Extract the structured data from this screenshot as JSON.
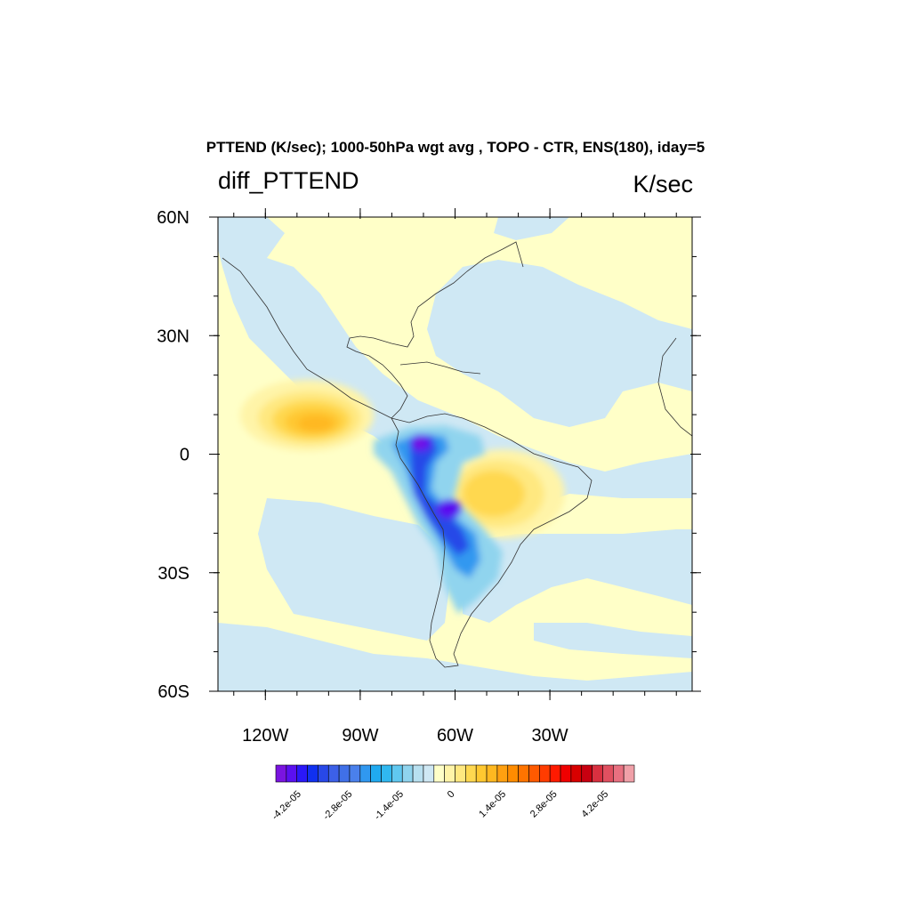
{
  "title": "PTTEND (K/sec); 1000-50hPa wgt avg , TOPO - CTR, ENS(180), iday=5",
  "left_string": "diff_PTTEND",
  "right_string": "K/sec",
  "map": {
    "lon_range": [
      -135,
      15
    ],
    "lat_range": [
      -60,
      60
    ],
    "lat_ticks": [
      {
        "value": 60,
        "label": "60N"
      },
      {
        "value": 30,
        "label": "30N"
      },
      {
        "value": 0,
        "label": "0"
      },
      {
        "value": -30,
        "label": "30S"
      },
      {
        "value": -60,
        "label": "60S"
      }
    ],
    "lon_ticks": [
      {
        "value": -120,
        "label": "120W"
      },
      {
        "value": -90,
        "label": "90W"
      },
      {
        "value": -60,
        "label": "60W"
      },
      {
        "value": -30,
        "label": "30W"
      }
    ]
  },
  "colorbar": {
    "labels": [
      "-4.2e-05",
      "-2.8e-05",
      "-1.4e-05",
      "0",
      "1.4e-05",
      "2.8e-05",
      "4.2e-05"
    ],
    "colors": [
      "#7a14e0",
      "#5a10f0",
      "#2a18f8",
      "#1030f0",
      "#2848e8",
      "#3c60e8",
      "#4070e8",
      "#4a80ec",
      "#3098f0",
      "#20aaf0",
      "#30b8f0",
      "#60c8f0",
      "#90d4ee",
      "#b8e0f0",
      "#cfe8f4",
      "#ffffc8",
      "#fff4a8",
      "#ffe880",
      "#ffd850",
      "#ffc830",
      "#ffb820",
      "#ffa010",
      "#ff8c00",
      "#ff7400",
      "#ff5a00",
      "#ff3c00",
      "#ff1a00",
      "#f00000",
      "#d80000",
      "#c80010",
      "#d83040",
      "#e05060",
      "#e87080",
      "#f0a0a8"
    ]
  }
}
